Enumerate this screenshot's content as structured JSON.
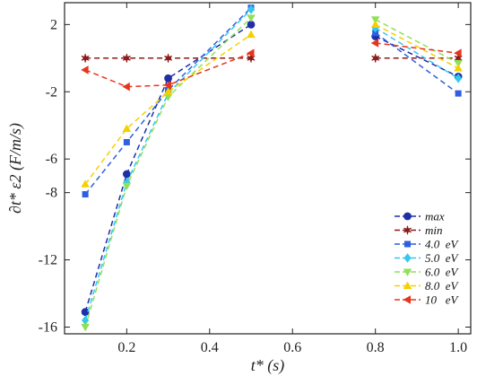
{
  "chart_data": {
    "type": "line",
    "xlabel": "t* (s)",
    "ylabel": "∂t* ε2 (F/m/s)",
    "xlim": [
      0.05,
      1.03
    ],
    "ylim": [
      -16.4,
      3.3
    ],
    "xticks": [
      0.2,
      0.4,
      0.6,
      0.8,
      1.0
    ],
    "xtick_labels": [
      "0.2",
      "0.4",
      "0.6",
      "0.8",
      "1.0"
    ],
    "yticks": [
      2,
      -2,
      -6,
      -8,
      -12,
      -16
    ],
    "ytick_labels": [
      "2",
      "-2",
      "-6",
      "-8",
      "-12",
      "-16"
    ],
    "grid": false,
    "legend_position": "bottom-right",
    "line_style": "dashed",
    "segments": [
      [
        0.1,
        0.2,
        0.3,
        0.5
      ],
      [
        0.8,
        1.0
      ]
    ],
    "series": [
      {
        "name": "max",
        "color": "#1f2fa6",
        "marker": "circle",
        "points": [
          [
            0.1,
            -15.1
          ],
          [
            0.2,
            -6.9
          ],
          [
            0.3,
            -1.2
          ],
          [
            0.5,
            2.0
          ],
          [
            0.8,
            1.3
          ],
          [
            1.0,
            -1.1
          ]
        ]
      },
      {
        "name": "min",
        "color": "#8b1a1a",
        "marker": "star",
        "points": [
          [
            0.1,
            0.0
          ],
          [
            0.2,
            0.0
          ],
          [
            0.3,
            0.0
          ],
          [
            0.5,
            0.0
          ],
          [
            0.8,
            0.0
          ],
          [
            1.0,
            0.0
          ]
        ]
      },
      {
        "name": "4.0  eV",
        "color": "#2f5fe0",
        "marker": "square",
        "points": [
          [
            0.1,
            -8.1
          ],
          [
            0.2,
            -5.0
          ],
          [
            0.3,
            -1.9
          ],
          [
            0.5,
            3.0
          ],
          [
            0.8,
            1.5
          ],
          [
            1.0,
            -2.1
          ]
        ]
      },
      {
        "name": "5.0  eV",
        "color": "#33c8f0",
        "marker": "diamond",
        "points": [
          [
            0.1,
            -15.6
          ],
          [
            0.2,
            -7.4
          ],
          [
            0.3,
            -2.1
          ],
          [
            0.5,
            2.9
          ],
          [
            0.8,
            1.8
          ],
          [
            1.0,
            -1.2
          ]
        ]
      },
      {
        "name": "6.0  eV",
        "color": "#90e05a",
        "marker": "triangle-down",
        "points": [
          [
            0.1,
            -16.0
          ],
          [
            0.2,
            -7.6
          ],
          [
            0.3,
            -2.3
          ],
          [
            0.5,
            2.4
          ],
          [
            0.8,
            2.3
          ],
          [
            1.0,
            -0.3
          ]
        ]
      },
      {
        "name": "8.0  eV",
        "color": "#f5d000",
        "marker": "triangle-up",
        "points": [
          [
            0.1,
            -7.5
          ],
          [
            0.2,
            -4.2
          ],
          [
            0.3,
            -2.0
          ],
          [
            0.5,
            1.4
          ],
          [
            0.8,
            2.0
          ],
          [
            1.0,
            -0.6
          ]
        ]
      },
      {
        "name": "10   eV",
        "color": "#e8341c",
        "marker": "triangle-left",
        "points": [
          [
            0.1,
            -0.7
          ],
          [
            0.2,
            -1.7
          ],
          [
            0.3,
            -1.6
          ],
          [
            0.5,
            0.3
          ],
          [
            0.8,
            0.9
          ],
          [
            1.0,
            0.3
          ]
        ]
      }
    ]
  }
}
